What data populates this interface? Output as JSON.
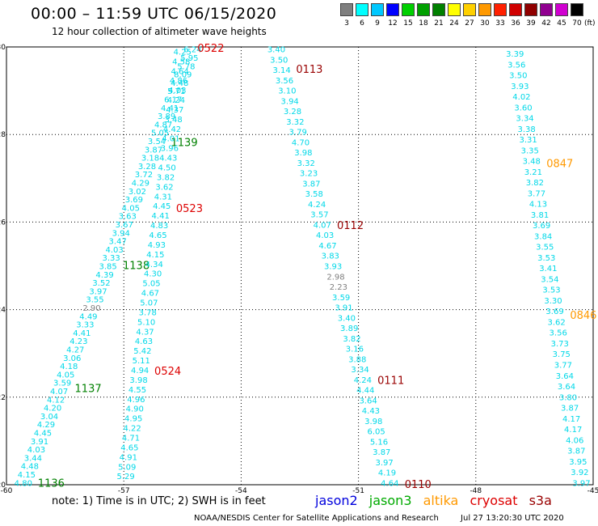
{
  "title": "00:00 – 11:59 UTC 06/15/2020",
  "subtitle": "12 hour collection of altimeter wave heights",
  "color_scale": {
    "labels": [
      "3",
      "6",
      "9",
      "12",
      "15",
      "18",
      "21",
      "24",
      "27",
      "30",
      "33",
      "36",
      "39",
      "42",
      "45",
      "70"
    ],
    "unit": "(ft)",
    "colors": [
      "#7f7f7f",
      "#00ffff",
      "#00c8ff",
      "#0000ff",
      "#00d000",
      "#00a000",
      "#008000",
      "#ffff00",
      "#ffd000",
      "#ff9900",
      "#ff2000",
      "#d00000",
      "#900000",
      "#900090",
      "#d000d0",
      "#000000"
    ]
  },
  "footer": {
    "note": "note:  1) Time is in UTC;  2) SWH is in feet",
    "legend": [
      {
        "label": "jason2",
        "color": "#0000dd"
      },
      {
        "label": "jason3",
        "color": "#00aa00"
      },
      {
        "label": "altika",
        "color": "#ff9900"
      },
      {
        "label": "cryosat",
        "color": "#dd0000"
      },
      {
        "label": "s3a",
        "color": "#990000"
      }
    ],
    "credit": "NOAA/NESDIS Center for Satellite Applications and Research",
    "timestamp": "Jul 27 13:20:30 UTC 2020"
  },
  "chart_data": {
    "type": "scatter",
    "xlim": [
      -60,
      -45
    ],
    "ylim": [
      20,
      30
    ],
    "x_ticks": [
      "-60",
      "-57",
      "-54",
      "-51",
      "-48",
      "-45"
    ],
    "y_ticks": [
      "20",
      "22",
      "24",
      "26",
      "28",
      "30"
    ],
    "grid": true,
    "value_color": "#00d8e8",
    "tracks": [
      {
        "start": [
          -59.57,
          20.05
        ],
        "end": [
          -55.24,
          29.95
        ],
        "color": "#00d8e8",
        "values": [
          "4.80",
          "4.15",
          "4.48",
          "3.44",
          "4.03",
          "3.91",
          "4.45",
          "4.29",
          "3.04",
          "4.20",
          "4.12",
          "4.07",
          "3.59",
          "4.05",
          "4.18",
          "3.06",
          "4.27",
          "4.23",
          "4.41",
          "3.33",
          "4.49",
          "2.90",
          "3.55",
          "3.97",
          "3.52",
          "4.39",
          "3.85",
          "3.33",
          "4.03",
          "3.47",
          "3.94",
          "3.67",
          "3.63",
          "4.05",
          "3.69",
          "3.02",
          "4.29",
          "3.72",
          "3.28",
          "3.18",
          "3.87",
          "3.54",
          "5.05",
          "4.87",
          "3.89",
          "4.41",
          "6.17",
          "5.71",
          "4.48",
          "8.09",
          "5.78",
          "5.95",
          "6.24"
        ],
        "labels": [
          {
            "text": "1136",
            "y": 20.05,
            "color": "#008000"
          },
          {
            "text": "1137",
            "y": 22.21,
            "color": "#008000"
          },
          {
            "text": "1138",
            "y": 25.02,
            "color": "#008000"
          },
          {
            "text": "1139",
            "y": 27.83,
            "color": "#008000"
          }
        ]
      },
      {
        "start": [
          -56.95,
          20.2
        ],
        "end": [
          -55.5,
          29.9
        ],
        "color": "#00d8e8",
        "values": [
          "5.29",
          "5.09",
          "4.91",
          "4.65",
          "4.71",
          "4.22",
          "4.95",
          "4.90",
          "4.96",
          "4.55",
          "3.98",
          "4.94",
          "5.11",
          "5.42",
          "4.63",
          "4.37",
          "5.10",
          "3.78",
          "5.07",
          "4.67",
          "5.05",
          "4.30",
          "4.34",
          "4.15",
          "4.93",
          "4.65",
          "4.83",
          "4.41",
          "4.45",
          "4.31",
          "3.62",
          "3.82",
          "4.50",
          "4.43",
          "3.96",
          "4.01",
          "4.42",
          "3.48",
          "4.37",
          "4.24",
          "4.03",
          "4.86",
          "4.64",
          "4.58",
          "4.25"
        ],
        "labels": [
          {
            "text": "0522",
            "y": 29.98,
            "color": "#dd0000"
          },
          {
            "text": "0523",
            "y": 26.32,
            "color": "#dd0000"
          },
          {
            "text": "0524",
            "y": 22.61,
            "color": "#dd0000"
          }
        ]
      },
      {
        "start": [
          -53.1,
          29.95
        ],
        "end": [
          -50.2,
          20.05
        ],
        "color": "#00d8e8",
        "values": [
          "3.40",
          "3.50",
          "3.14",
          "3.56",
          "3.10",
          "3.94",
          "3.28",
          "3.32",
          "3.79",
          "4.70",
          "3.98",
          "3.32",
          "3.23",
          "3.87",
          "3.58",
          "4.24",
          "3.57",
          "4.07",
          "4.03",
          "4.67",
          "3.83",
          "3.93",
          "2.98",
          "2.23",
          "3.59",
          "3.91",
          "3.40",
          "3.89",
          "3.82",
          "3.16",
          "3.88",
          "3.34",
          "4.24",
          "4.44",
          "3.64",
          "4.43",
          "3.98",
          "6.05",
          "5.16",
          "3.87",
          "3.97",
          "4.19",
          "4.64"
        ],
        "labels": [
          {
            "text": "0113",
            "y": 29.5,
            "color": "#990000"
          },
          {
            "text": "0112",
            "y": 25.93,
            "color": "#990000"
          },
          {
            "text": "0111",
            "y": 22.39,
            "color": "#990000"
          },
          {
            "text": "0110",
            "y": 20.02,
            "color": "#990000"
          }
        ]
      },
      {
        "start": [
          -47.0,
          29.85
        ],
        "end": [
          -45.3,
          20.05
        ],
        "color": "#00d8e8",
        "values": [
          "3.39",
          "3.56",
          "3.50",
          "3.93",
          "4.02",
          "3.60",
          "3.34",
          "3.38",
          "3.31",
          "3.35",
          "3.48",
          "3.21",
          "3.82",
          "3.77",
          "4.13",
          "3.81",
          "3.69",
          "3.84",
          "3.55",
          "3.53",
          "3.41",
          "3.54",
          "3.53",
          "3.30",
          "3.69",
          "3.62",
          "3.56",
          "3.73",
          "3.75",
          "3.77",
          "3.64",
          "3.64",
          "3.80",
          "3.87",
          "4.17",
          "4.17",
          "4.06",
          "3.87",
          "3.95",
          "3.92",
          "3.97"
        ],
        "labels": [
          {
            "text": "0847",
            "y": 27.35,
            "color": "#ff9900"
          },
          {
            "text": "0846",
            "y": 23.88,
            "color": "#ff9900"
          }
        ]
      }
    ]
  }
}
